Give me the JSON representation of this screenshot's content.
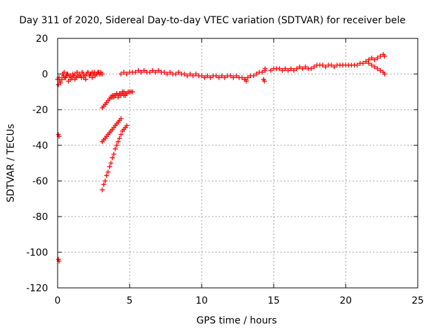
{
  "chart_data": {
    "type": "scatter",
    "title": "Day 311 of 2020, Sidereal Day-to-day VTEC variation (SDTVAR) for receiver bele",
    "xlabel": "GPS time / hours",
    "ylabel": "SDTVAR / TECUs",
    "xlim": [
      0,
      25
    ],
    "ylim": [
      -120,
      20
    ],
    "x_ticks": [
      "0",
      "5",
      "10",
      "15",
      "20",
      "25"
    ],
    "y_ticks": [
      "-120",
      "-100",
      "-80",
      "-60",
      "-40",
      "-20",
      "0",
      "20"
    ],
    "grid": true,
    "marker": "plus",
    "color": "#ff0000",
    "series": [
      {
        "x": [
          0.0,
          0.05,
          0.1,
          0.15,
          0.2,
          0.3,
          0.4,
          0.5,
          0.6,
          0.7,
          0.8,
          0.9,
          1.0,
          1.1,
          1.2,
          1.3,
          1.4,
          1.5,
          1.6,
          1.7,
          1.8,
          1.9,
          2.0,
          2.1,
          2.2,
          2.3,
          2.4,
          2.5,
          2.6,
          2.7,
          2.8,
          2.9,
          3.0,
          3.1
        ],
        "y": [
          -3,
          -6,
          -2,
          -4,
          -5,
          -3,
          -1,
          -2,
          -1,
          0,
          -1,
          -3,
          -2,
          -1,
          0,
          -2,
          -1,
          0,
          -1,
          1,
          -2,
          -1,
          0,
          1,
          -1,
          0,
          1,
          0,
          -1,
          0,
          1,
          0,
          1,
          0
        ]
      },
      {
        "x": [
          0.35,
          0.45,
          0.55,
          0.65,
          0.75,
          0.9,
          1.05,
          1.2,
          1.35,
          1.5,
          1.65,
          1.8,
          1.95,
          2.1,
          2.25,
          2.4,
          2.55,
          2.7,
          2.85,
          3.0
        ],
        "y": [
          0,
          1,
          -2,
          0,
          -4,
          -1,
          0,
          -3,
          1,
          -1,
          -2,
          0,
          -3,
          1,
          0,
          -2,
          1,
          0,
          1,
          0
        ]
      },
      {
        "x": [
          0.05,
          0.1,
          0.05,
          0.1
        ],
        "y": [
          -34,
          -35,
          -104,
          -105
        ]
      },
      {
        "x": [
          3.1,
          3.2,
          3.3,
          3.4,
          3.5,
          3.6,
          3.7,
          3.8,
          3.9,
          4.0,
          4.1,
          4.2,
          4.3,
          4.4,
          4.5,
          4.6,
          4.7,
          4.8,
          4.9,
          5.0,
          5.1,
          5.2
        ],
        "y": [
          -19,
          -18,
          -17,
          -16,
          -15,
          -14,
          -13,
          -13,
          -12,
          -12,
          -11,
          -12,
          -11,
          -11,
          -10,
          -10,
          -12,
          -11,
          -10,
          -10,
          -10,
          -10
        ]
      },
      {
        "x": [
          3.7,
          3.8,
          3.9,
          4.0,
          4.1,
          4.2,
          4.3,
          4.4,
          4.5,
          4.6,
          4.7
        ],
        "y": [
          -13,
          -12,
          -13,
          -12,
          -11,
          -13,
          -11,
          -12,
          -11,
          -12,
          -11
        ]
      },
      {
        "x": [
          3.1,
          3.2,
          3.3,
          3.4,
          3.5,
          3.6,
          3.7,
          3.8,
          3.9,
          4.0,
          4.1,
          4.2,
          4.3,
          4.4
        ],
        "y": [
          -38,
          -37,
          -36,
          -35,
          -34,
          -33,
          -32,
          -31,
          -30,
          -29,
          -28,
          -27,
          -26,
          -25
        ]
      },
      {
        "x": [
          3.1,
          3.2,
          3.3,
          3.4,
          3.5,
          3.6,
          3.7,
          3.8,
          3.9,
          4.0,
          4.1,
          4.2,
          4.3,
          4.4,
          4.5,
          4.6,
          4.7,
          4.8
        ],
        "y": [
          -65,
          -62,
          -60,
          -57,
          -55,
          -52,
          -50,
          -47,
          -45,
          -42,
          -40,
          -38,
          -36,
          -34,
          -32,
          -31,
          -30,
          -29
        ]
      },
      {
        "x": [
          4.4,
          4.6,
          4.8,
          5.0,
          5.2,
          5.4,
          5.6,
          5.8,
          6.0,
          6.2,
          6.4,
          6.6,
          6.8,
          7.0,
          7.2,
          7.4,
          7.6,
          7.8,
          8.0,
          8.2,
          8.4,
          8.6,
          8.8,
          9.0,
          9.2,
          9.4,
          9.6,
          9.8,
          10.0,
          10.2,
          10.4,
          10.6,
          10.8,
          11.0,
          11.2,
          11.4,
          11.6,
          11.8,
          12.0,
          12.2,
          12.4,
          12.6,
          12.8,
          13.0,
          13.2,
          13.4,
          13.6,
          13.8,
          14.0,
          14.2,
          14.4
        ],
        "y": [
          0,
          1,
          0,
          1,
          1,
          1,
          2,
          1,
          2,
          1,
          1,
          2,
          1,
          2,
          1,
          1,
          0,
          1,
          0,
          0,
          1,
          0,
          0,
          -1,
          0,
          -1,
          0,
          -1,
          -1,
          -2,
          -1,
          -2,
          -1,
          -1,
          -2,
          -1,
          -2,
          -1,
          -1,
          -2,
          -1,
          -2,
          -2,
          -3,
          -2,
          -1,
          -1,
          0,
          1,
          1,
          2
        ]
      },
      {
        "x": [
          13.0,
          13.1,
          14.3,
          14.35,
          14.4
        ],
        "y": [
          -3,
          -4,
          -3,
          -4,
          3
        ]
      },
      {
        "x": [
          14.8,
          15.0,
          15.2,
          15.4,
          15.6,
          15.8,
          16.0,
          16.2,
          16.4,
          16.6,
          16.8,
          17.0,
          17.2,
          17.4,
          17.6,
          17.8,
          18.0,
          18.2,
          18.4,
          18.6,
          18.8,
          19.0,
          19.2,
          19.4,
          19.6,
          19.8,
          20.0,
          20.2,
          20.4,
          20.6,
          20.8,
          21.0,
          21.2,
          21.4,
          21.6,
          21.8,
          22.0,
          22.2,
          22.4,
          22.6,
          22.7
        ],
        "y": [
          2,
          3,
          3,
          3,
          2,
          3,
          2,
          3,
          2,
          3,
          4,
          3,
          4,
          3,
          3,
          4,
          5,
          5,
          5,
          4,
          5,
          5,
          4,
          5,
          5,
          5,
          5,
          5,
          5,
          5,
          5,
          6,
          6,
          7,
          8,
          9,
          8,
          9,
          10,
          11,
          10
        ]
      },
      {
        "x": [
          21.6,
          21.8,
          22.0,
          22.2,
          22.4,
          22.6,
          22.7
        ],
        "y": [
          6,
          5,
          4,
          3,
          2,
          1,
          0
        ]
      }
    ]
  }
}
